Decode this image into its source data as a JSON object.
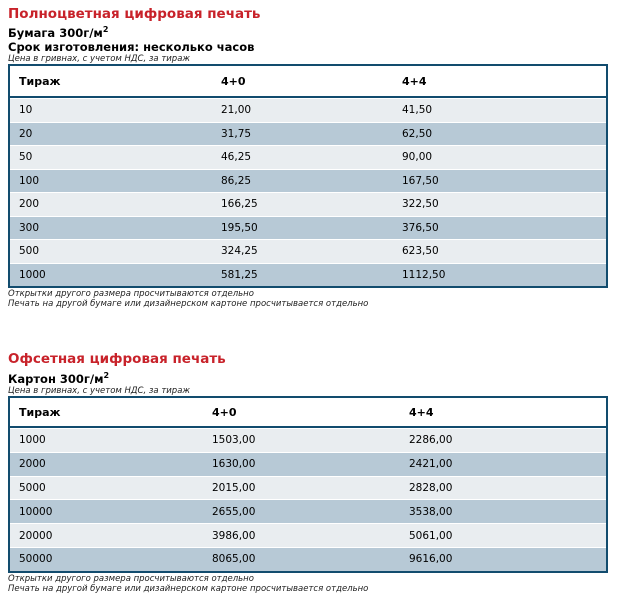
{
  "section1": {
    "title": "Полноцветная цифровая печать",
    "paper": "Бумага 300г/м",
    "paper_sup": "2",
    "production_time": "Срок изготовления: несколько часов",
    "price_note": "Цена в гривнах, с учетом НДС, за тираж",
    "headers": [
      "Тираж",
      "4+0",
      "4+4"
    ],
    "rows": [
      [
        "10",
        "21,00",
        "41,50"
      ],
      [
        "20",
        "31,75",
        "62,50"
      ],
      [
        "50",
        "46,25",
        "90,00"
      ],
      [
        "100",
        "86,25",
        "167,50"
      ],
      [
        "200",
        "166,25",
        "322,50"
      ],
      [
        "300",
        "195,50",
        "376,50"
      ],
      [
        "500",
        "324,25",
        "623,50"
      ],
      [
        "1000",
        "581,25",
        "1112,50"
      ]
    ],
    "footnote1": "Открытки другого размера просчитываются отдельно",
    "footnote2": "Печать на другой бумаге или дизайнерском картоне просчитывается отдельно"
  },
  "section2": {
    "title": "Офсетная цифровая печать",
    "paper": "Картон 300г/м",
    "paper_sup": "2",
    "price_note": "Цена в гривнах, с учетом НДС, за тираж",
    "headers": [
      "Тираж",
      "4+0",
      "4+4"
    ],
    "rows": [
      [
        "1000",
        "1503,00",
        "2286,00"
      ],
      [
        "2000",
        "1630,00",
        "2421,00"
      ],
      [
        "5000",
        "2015,00",
        "2828,00"
      ],
      [
        "10000",
        "2655,00",
        "3538,00"
      ],
      [
        "20000",
        "3986,00",
        "5061,00"
      ],
      [
        "50000",
        "8065,00",
        "9616,00"
      ]
    ],
    "footnote1": "Открытки другого размера просчитываются отдельно",
    "footnote2": "Печать на другой бумаге или дизайнерском картоне просчитывается отдельно"
  }
}
